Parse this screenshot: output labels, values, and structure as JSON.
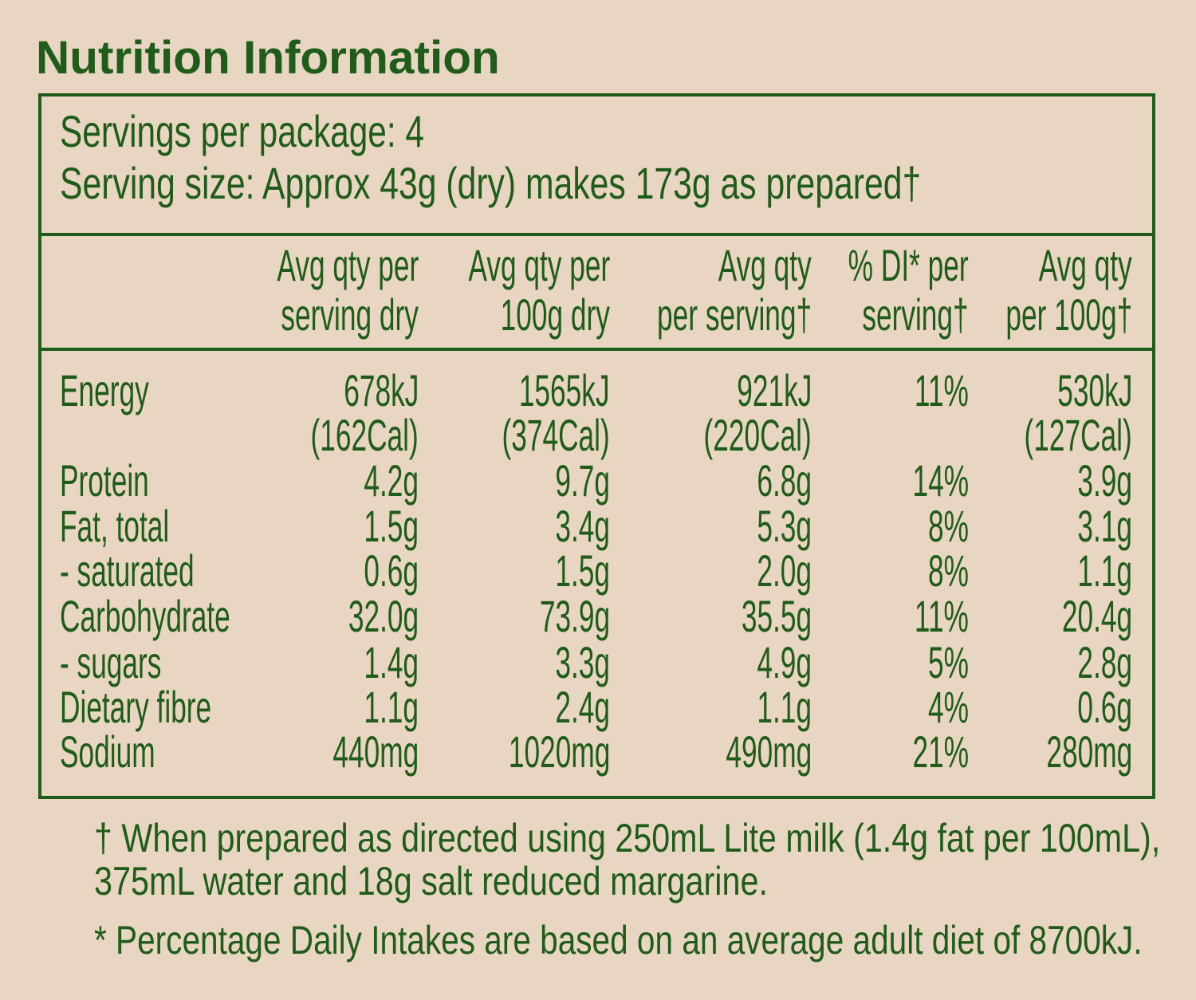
{
  "title": "Nutrition Information",
  "servings_per_package": "Servings per package: 4",
  "serving_size": "Serving size: Approx 43g (dry) makes 173g as prepared†",
  "columns": [
    [
      "Avg qty per",
      "serving dry"
    ],
    [
      "Avg qty per",
      "100g dry"
    ],
    [
      "Avg qty",
      "per serving†"
    ],
    [
      "% DI* per",
      "serving†"
    ],
    [
      "Avg qty",
      "per 100g†"
    ]
  ],
  "rows": [
    {
      "label": "Energy",
      "values": [
        "678kJ",
        "1565kJ",
        "921kJ",
        "11%",
        "530kJ"
      ],
      "values2": [
        "(162Cal)",
        "(374Cal)",
        "(220Cal)",
        "",
        "(127Cal)"
      ]
    },
    {
      "label": "Protein",
      "values": [
        "4.2g",
        "9.7g",
        "6.8g",
        "14%",
        "3.9g"
      ]
    },
    {
      "label": "Fat, total",
      "values": [
        "1.5g",
        "3.4g",
        "5.3g",
        "8%",
        "3.1g"
      ]
    },
    {
      "label": "- saturated",
      "values": [
        "0.6g",
        "1.5g",
        "2.0g",
        "8%",
        "1.1g"
      ]
    },
    {
      "label": "Carbohydrate",
      "values": [
        "32.0g",
        "73.9g",
        "35.5g",
        "11%",
        "20.4g"
      ]
    },
    {
      "label": "- sugars",
      "values": [
        "1.4g",
        "3.3g",
        "4.9g",
        "5%",
        "2.8g"
      ]
    },
    {
      "label": "Dietary fibre",
      "values": [
        "1.1g",
        "2.4g",
        "1.1g",
        "4%",
        "0.6g"
      ]
    },
    {
      "label": "Sodium",
      "values": [
        "440mg",
        "1020mg",
        "490mg",
        "21%",
        "280mg"
      ]
    }
  ],
  "footnotes": [
    "† When prepared as directed using 250mL Lite milk (1.4g fat per 100mL),",
    "375mL water and 18g salt reduced margarine.",
    "* Percentage Daily Intakes are based on an average adult diet of 8700kJ."
  ],
  "colors": {
    "background": "#e9d6c2",
    "text": "#1f5c1a"
  }
}
